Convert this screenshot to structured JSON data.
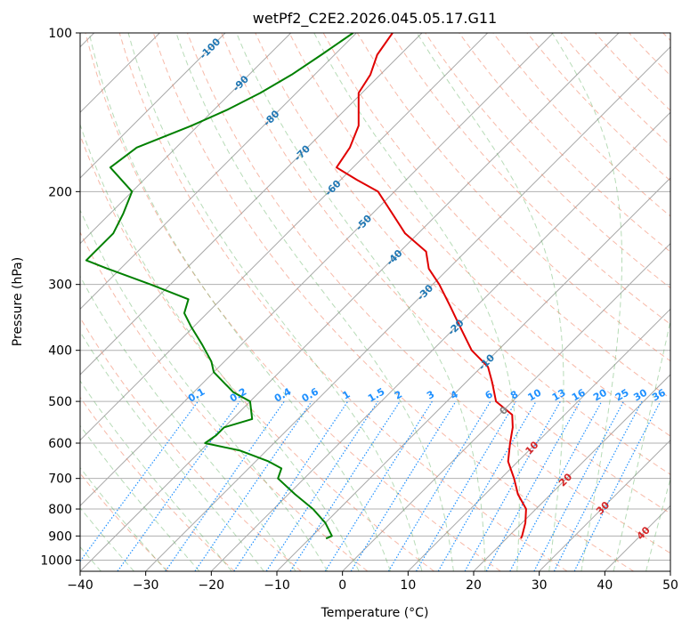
{
  "chart_data": {
    "type": "line",
    "title": "wetPf2_C2E2.2026.045.05.17.G11",
    "xlabel": "Temperature (°C)",
    "ylabel": "Pressure (hPa)",
    "xlim": [
      -40,
      50
    ],
    "ylim": [
      1050,
      100
    ],
    "y_scale": "log",
    "skew": "skew-T",
    "x_ticks": [
      -40,
      -30,
      -20,
      -10,
      0,
      10,
      20,
      30,
      40,
      50
    ],
    "y_ticks": [
      100,
      200,
      300,
      400,
      500,
      600,
      700,
      800,
      900,
      1000
    ],
    "grid": true,
    "legend": "none",
    "colors": {
      "temperature": "#e00000",
      "dewpoint": "#008000",
      "dry_adiabat": "#f08060",
      "moist_adiabat": "#60b060",
      "mixing_ratio": "#1e90ff",
      "isotherm": "#808080",
      "isotherm_label_neg": "#1f77b4",
      "isotherm_label_pos": "#d62728"
    },
    "series": [
      {
        "id": "temperature",
        "p": [
          100,
          110,
          120,
          130,
          150,
          165,
          180,
          190,
          200,
          220,
          240,
          260,
          280,
          300,
          330,
          360,
          400,
          430,
          460,
          500,
          530,
          560,
          600,
          650,
          700,
          750,
          800,
          850,
          900,
          910
        ],
        "t": [
          -74.5,
          -73.5,
          -71.5,
          -70.5,
          -65.5,
          -63.5,
          -62.5,
          -57.5,
          -52.5,
          -47,
          -42,
          -36,
          -33,
          -29,
          -24,
          -19.5,
          -14,
          -9,
          -6,
          -2.5,
          2,
          4,
          6,
          8.5,
          12,
          15,
          18.5,
          20.5,
          22,
          22.2
        ]
      },
      {
        "id": "dewpoint",
        "p": [
          100,
          110,
          120,
          130,
          140,
          150,
          165,
          180,
          200,
          220,
          240,
          260,
          270,
          280,
          300,
          320,
          340,
          360,
          390,
          420,
          440,
          480,
          500,
          540,
          560,
          580,
          600,
          620,
          650,
          670,
          700,
          750,
          800,
          850,
          900,
          910
        ],
        "t": [
          -80.5,
          -82,
          -83.5,
          -85.5,
          -88,
          -91,
          -96,
          -97,
          -90,
          -88,
          -86.5,
          -86.5,
          -86.5,
          -82,
          -73,
          -65,
          -63.5,
          -60.5,
          -56,
          -52,
          -50,
          -44,
          -40,
          -37,
          -40,
          -40,
          -40.5,
          -34,
          -28,
          -25,
          -24,
          -19,
          -14,
          -10,
          -7,
          -7.5
        ]
      }
    ],
    "isotherm_labels": [
      "-100",
      "-90",
      "-80",
      "-70",
      "-60",
      "-50",
      "-40",
      "-30",
      "-20",
      "-10",
      "0",
      "10",
      "20",
      "30",
      "40"
    ],
    "mixing_ratio_labels": [
      "0.1",
      "0.2",
      "0.4",
      "0.6",
      "1",
      "1.5",
      "2",
      "3",
      "4",
      "6",
      "8",
      "10",
      "13",
      "16",
      "20",
      "25",
      "30",
      "36"
    ]
  }
}
